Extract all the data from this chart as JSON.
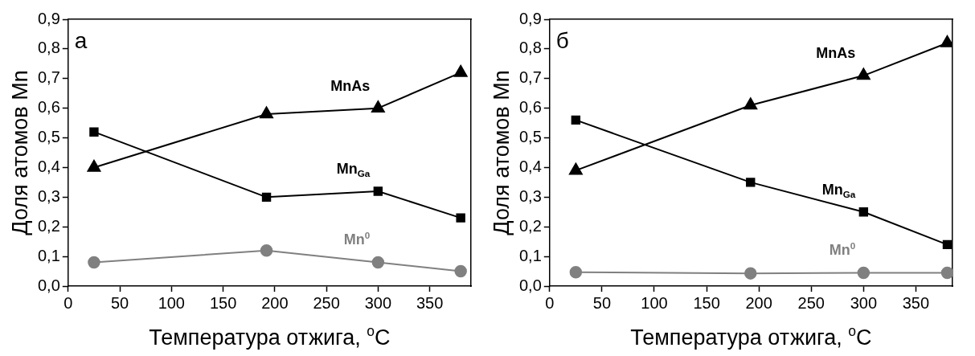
{
  "chart_data": [
    {
      "type": "line",
      "xlabel": "Температура отжига, $^{o}$C",
      "ylabel": "Доля атомов Mn",
      "annotations": [
        "а"
      ],
      "x": [
        25,
        192,
        300,
        380
      ],
      "series": [
        {
          "name": "MnAs",
          "color": "#000000",
          "marker": "triangle",
          "values": [
            0.4,
            0.58,
            0.6,
            0.72
          ]
        },
        {
          "name": "Mn$_{Ga}$",
          "color": "#000000",
          "marker": "square",
          "values": [
            0.52,
            0.3,
            0.32,
            0.23
          ]
        },
        {
          "name": "Mn$^{0}$",
          "color": "#808080",
          "marker": "circle",
          "values": [
            0.08,
            0.12,
            0.08,
            0.05
          ]
        }
      ],
      "xlim": [
        0,
        390
      ],
      "xticks": [
        0,
        50,
        100,
        150,
        200,
        250,
        300,
        350
      ],
      "ylim": [
        0,
        0.9
      ],
      "yticks": [
        {
          "value": 0,
          "label": "0,0"
        },
        {
          "value": 0.1,
          "label": "0,1"
        },
        {
          "value": 0.2,
          "label": "0,2"
        },
        {
          "value": 0.3,
          "label": "0,3"
        },
        {
          "value": 0.4,
          "label": "0,4"
        },
        {
          "value": 0.5,
          "label": "0,5"
        },
        {
          "value": 0.6,
          "label": "0,6"
        },
        {
          "value": 0.7,
          "label": "0,7"
        },
        {
          "value": 0.8,
          "label": "0,8"
        },
        {
          "value": 0.9,
          "label": "0,9"
        }
      ],
      "grid": false,
      "legend": false,
      "line_style": "solid"
    },
    {
      "type": "line",
      "xlabel": "Температура отжига, $^{o}$C",
      "ylabel": "Доля атомов Mn",
      "annotations": [
        "б"
      ],
      "x": [
        25,
        192,
        300,
        380
      ],
      "series": [
        {
          "name": "MnAs",
          "color": "#000000",
          "marker": "triangle",
          "values": [
            0.39,
            0.61,
            0.71,
            0.82
          ]
        },
        {
          "name": "Mn$_{Ga}$",
          "color": "#000000",
          "marker": "square",
          "values": [
            0.56,
            0.35,
            0.25,
            0.14
          ]
        },
        {
          "name": "Mn$^{0}$",
          "color": "#808080",
          "marker": "circle",
          "values": [
            0.047,
            0.043,
            0.045,
            0.045
          ]
        }
      ],
      "xlim": [
        0,
        385
      ],
      "xticks": [
        0,
        50,
        100,
        150,
        200,
        250,
        300,
        350
      ],
      "ylim": [
        0,
        0.9
      ],
      "yticks": [
        {
          "value": 0,
          "label": "0,0"
        },
        {
          "value": 0.1,
          "label": "0,1"
        },
        {
          "value": 0.2,
          "label": "0,2"
        },
        {
          "value": 0.3,
          "label": "0,3"
        },
        {
          "value": 0.4,
          "label": "0,4"
        },
        {
          "value": 0.5,
          "label": "0,5"
        },
        {
          "value": 0.6,
          "label": "0,6"
        },
        {
          "value": 0.7,
          "label": "0,7"
        },
        {
          "value": 0.8,
          "label": "0,8"
        },
        {
          "value": 0.9,
          "label": "0,9"
        }
      ],
      "grid": false,
      "legend": false,
      "line_style": "solid"
    }
  ]
}
